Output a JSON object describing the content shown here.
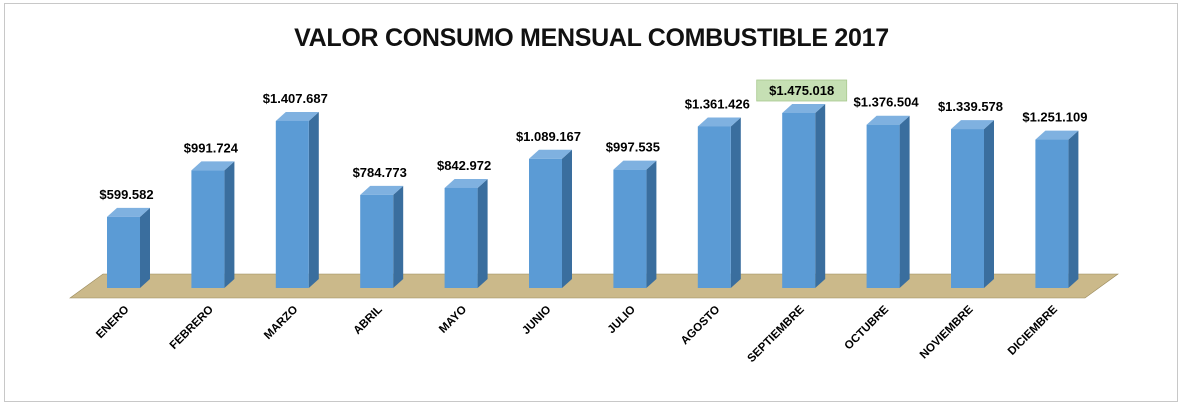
{
  "chart_data": {
    "type": "bar",
    "title": "VALOR CONSUMO MENSUAL COMBUSTIBLE 2017",
    "categories": [
      "ENERO",
      "FEBRERO",
      "MARZO",
      "ABRIL",
      "MAYO",
      "JUNIO",
      "JULIO",
      "AGOSTO",
      "SEPTIEMBRE",
      "OCTUBRE",
      "NOVIEMBRE",
      "DICIEMBRE"
    ],
    "values": [
      599582,
      991724,
      1407687,
      784773,
      842972,
      1089167,
      997535,
      1361426,
      1475018,
      1376504,
      1339578,
      1251109
    ],
    "data_labels": [
      "$599.582",
      "$991.724",
      "$1.407.687",
      "$784.773",
      "$842.972",
      "$1.089.167",
      "$997.535",
      "$1.361.426",
      "$1.475.018",
      "$1.376.504",
      "$1.339.578",
      "$1.251.109"
    ],
    "highlighted_label": "$1.475.018",
    "xlabel": "",
    "ylabel": "",
    "ylim": [
      0,
      1700000
    ],
    "grid": false,
    "legend": "none",
    "colors": {
      "bar_front": "#5b9bd5",
      "bar_side": "#3a6e9e",
      "bar_top": "#7fb1e0",
      "floor": "#cbb98a",
      "highlight_bg": "#c6e0b4"
    }
  }
}
